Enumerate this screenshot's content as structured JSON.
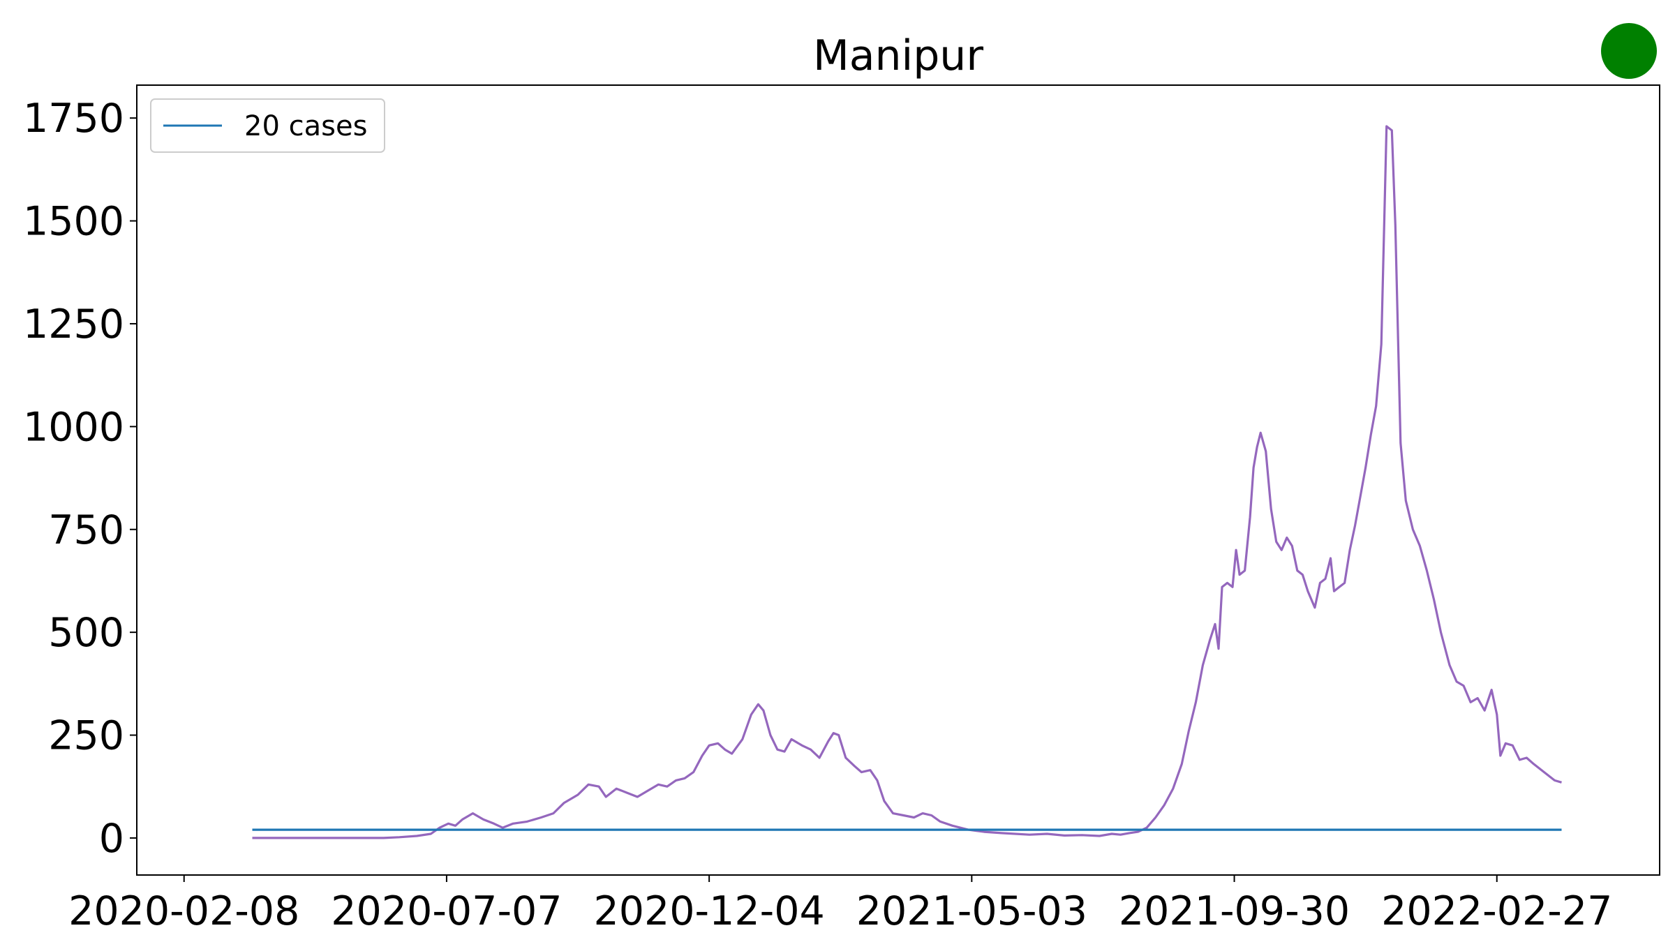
{
  "chart_data": {
    "type": "line",
    "title": "Manipur",
    "xlabel": "",
    "ylabel": "",
    "x_type": "date",
    "x_ticks": [
      "2020-02-08",
      "2020-07-07",
      "2020-12-04",
      "2021-05-03",
      "2021-09-30",
      "2022-02-27"
    ],
    "y_ticks": [
      0,
      250,
      500,
      750,
      1000,
      1250,
      1500,
      1750
    ],
    "xlim": [
      "2020-01-12",
      "2022-05-31"
    ],
    "ylim": [
      -90,
      1830
    ],
    "grid": false,
    "legend": {
      "position": "top-left",
      "entries": [
        "20 cases"
      ]
    },
    "status_indicator_color": "#008000",
    "series": [
      {
        "name": "20 cases",
        "color": "#1f77b4",
        "points": [
          [
            "2020-03-18",
            20
          ],
          [
            "2022-04-05",
            20
          ]
        ]
      },
      {
        "color": "#9467bd",
        "points": [
          [
            "2020-03-18",
            0
          ],
          [
            "2020-05-01",
            0
          ],
          [
            "2020-06-01",
            0
          ],
          [
            "2020-06-10",
            2
          ],
          [
            "2020-06-20",
            5
          ],
          [
            "2020-06-28",
            10
          ],
          [
            "2020-07-03",
            25
          ],
          [
            "2020-07-08",
            35
          ],
          [
            "2020-07-12",
            30
          ],
          [
            "2020-07-16",
            45
          ],
          [
            "2020-07-22",
            60
          ],
          [
            "2020-07-28",
            45
          ],
          [
            "2020-08-03",
            35
          ],
          [
            "2020-08-08",
            25
          ],
          [
            "2020-08-14",
            35
          ],
          [
            "2020-08-22",
            40
          ],
          [
            "2020-08-30",
            50
          ],
          [
            "2020-09-06",
            60
          ],
          [
            "2020-09-12",
            85
          ],
          [
            "2020-09-20",
            105
          ],
          [
            "2020-09-26",
            130
          ],
          [
            "2020-10-02",
            125
          ],
          [
            "2020-10-06",
            100
          ],
          [
            "2020-10-12",
            120
          ],
          [
            "2020-10-18",
            110
          ],
          [
            "2020-10-24",
            100
          ],
          [
            "2020-10-30",
            115
          ],
          [
            "2020-11-05",
            130
          ],
          [
            "2020-11-10",
            125
          ],
          [
            "2020-11-15",
            140
          ],
          [
            "2020-11-20",
            145
          ],
          [
            "2020-11-25",
            160
          ],
          [
            "2020-11-30",
            200
          ],
          [
            "2020-12-04",
            225
          ],
          [
            "2020-12-09",
            230
          ],
          [
            "2020-12-13",
            215
          ],
          [
            "2020-12-17",
            205
          ],
          [
            "2020-12-23",
            240
          ],
          [
            "2020-12-28",
            300
          ],
          [
            "2021-01-01",
            325
          ],
          [
            "2021-01-04",
            310
          ],
          [
            "2021-01-08",
            250
          ],
          [
            "2021-01-12",
            215
          ],
          [
            "2021-01-16",
            210
          ],
          [
            "2021-01-20",
            240
          ],
          [
            "2021-01-26",
            225
          ],
          [
            "2021-01-31",
            215
          ],
          [
            "2021-02-05",
            195
          ],
          [
            "2021-02-10",
            235
          ],
          [
            "2021-02-13",
            255
          ],
          [
            "2021-02-16",
            250
          ],
          [
            "2021-02-20",
            195
          ],
          [
            "2021-02-25",
            175
          ],
          [
            "2021-03-01",
            160
          ],
          [
            "2021-03-06",
            165
          ],
          [
            "2021-03-10",
            140
          ],
          [
            "2021-03-14",
            90
          ],
          [
            "2021-03-19",
            60
          ],
          [
            "2021-03-25",
            55
          ],
          [
            "2021-03-31",
            50
          ],
          [
            "2021-04-05",
            60
          ],
          [
            "2021-04-10",
            55
          ],
          [
            "2021-04-15",
            40
          ],
          [
            "2021-04-22",
            30
          ],
          [
            "2021-05-01",
            20
          ],
          [
            "2021-05-10",
            15
          ],
          [
            "2021-05-20",
            12
          ],
          [
            "2021-06-05",
            8
          ],
          [
            "2021-06-15",
            10
          ],
          [
            "2021-06-25",
            6
          ],
          [
            "2021-07-05",
            7
          ],
          [
            "2021-07-15",
            5
          ],
          [
            "2021-07-22",
            10
          ],
          [
            "2021-07-27",
            8
          ],
          [
            "2021-08-01",
            12
          ],
          [
            "2021-08-06",
            15
          ],
          [
            "2021-08-11",
            25
          ],
          [
            "2021-08-16",
            50
          ],
          [
            "2021-08-21",
            80
          ],
          [
            "2021-08-26",
            120
          ],
          [
            "2021-08-31",
            180
          ],
          [
            "2021-09-04",
            260
          ],
          [
            "2021-09-08",
            330
          ],
          [
            "2021-09-12",
            420
          ],
          [
            "2021-09-16",
            480
          ],
          [
            "2021-09-19",
            520
          ],
          [
            "2021-09-21",
            460
          ],
          [
            "2021-09-23",
            610
          ],
          [
            "2021-09-26",
            620
          ],
          [
            "2021-09-29",
            610
          ],
          [
            "2021-10-01",
            700
          ],
          [
            "2021-10-03",
            640
          ],
          [
            "2021-10-06",
            650
          ],
          [
            "2021-10-09",
            780
          ],
          [
            "2021-10-11",
            900
          ],
          [
            "2021-10-13",
            950
          ],
          [
            "2021-10-15",
            985
          ],
          [
            "2021-10-18",
            940
          ],
          [
            "2021-10-21",
            800
          ],
          [
            "2021-10-24",
            720
          ],
          [
            "2021-10-27",
            700
          ],
          [
            "2021-10-30",
            730
          ],
          [
            "2021-11-02",
            710
          ],
          [
            "2021-11-05",
            650
          ],
          [
            "2021-11-08",
            640
          ],
          [
            "2021-11-11",
            600
          ],
          [
            "2021-11-15",
            560
          ],
          [
            "2021-11-18",
            620
          ],
          [
            "2021-11-21",
            630
          ],
          [
            "2021-11-24",
            680
          ],
          [
            "2021-11-26",
            600
          ],
          [
            "2021-11-29",
            610
          ],
          [
            "2021-12-02",
            620
          ],
          [
            "2021-12-05",
            700
          ],
          [
            "2021-12-08",
            760
          ],
          [
            "2021-12-11",
            830
          ],
          [
            "2021-12-14",
            900
          ],
          [
            "2021-12-17",
            980
          ],
          [
            "2021-12-20",
            1050
          ],
          [
            "2021-12-23",
            1200
          ],
          [
            "2021-12-26",
            1730
          ],
          [
            "2021-12-29",
            1720
          ],
          [
            "2021-12-31",
            1490
          ],
          [
            "2022-01-03",
            960
          ],
          [
            "2022-01-06",
            820
          ],
          [
            "2022-01-10",
            750
          ],
          [
            "2022-01-14",
            710
          ],
          [
            "2022-01-18",
            650
          ],
          [
            "2022-01-22",
            580
          ],
          [
            "2022-01-26",
            500
          ],
          [
            "2022-01-31",
            420
          ],
          [
            "2022-02-04",
            380
          ],
          [
            "2022-02-08",
            370
          ],
          [
            "2022-02-12",
            330
          ],
          [
            "2022-02-16",
            340
          ],
          [
            "2022-02-20",
            310
          ],
          [
            "2022-02-24",
            360
          ],
          [
            "2022-02-27",
            300
          ],
          [
            "2022-03-01",
            200
          ],
          [
            "2022-03-04",
            230
          ],
          [
            "2022-03-08",
            225
          ],
          [
            "2022-03-12",
            190
          ],
          [
            "2022-03-16",
            195
          ],
          [
            "2022-03-20",
            180
          ],
          [
            "2022-03-26",
            160
          ],
          [
            "2022-04-01",
            140
          ],
          [
            "2022-04-05",
            135
          ]
        ]
      }
    ]
  }
}
